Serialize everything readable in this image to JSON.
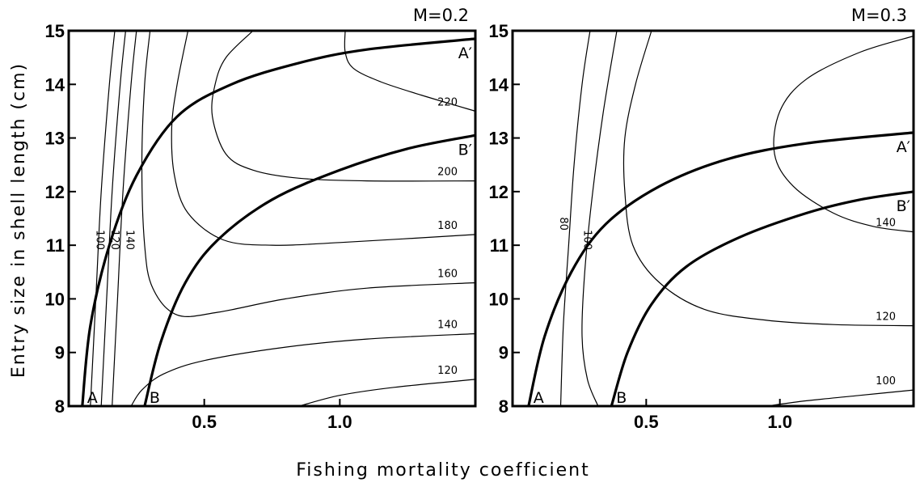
{
  "chart_data": {
    "type": "contour",
    "ylabel": "Entry size in shell length (cm)",
    "xlabel": "Fishing mortality coefficient",
    "xlim": [
      0,
      1.5
    ],
    "ylim": [
      8,
      15
    ],
    "x_ticks": [
      "0.5",
      "1.0"
    ],
    "y_ticks": [
      "8",
      "9",
      "10",
      "11",
      "12",
      "13",
      "14",
      "15"
    ],
    "panels": [
      {
        "title": "M=0.2",
        "contours": [
          {
            "label": "100",
            "points": [
              [
                0.08,
                8
              ],
              [
                0.1,
                10
              ],
              [
                0.12,
                12
              ],
              [
                0.15,
                14
              ],
              [
                0.17,
                15
              ]
            ]
          },
          {
            "label": "120",
            "points": [
              [
                0.12,
                8
              ],
              [
                0.14,
                10
              ],
              [
                0.16,
                12
              ],
              [
                0.19,
                14
              ],
              [
                0.21,
                15
              ]
            ]
          },
          {
            "label": "140",
            "points": [
              [
                0.16,
                8
              ],
              [
                0.18,
                10
              ],
              [
                0.2,
                12
              ],
              [
                0.23,
                14
              ],
              [
                0.25,
                15
              ]
            ]
          },
          {
            "label": "120",
            "points": [
              [
                0.85,
                8
              ],
              [
                1.0,
                8.2
              ],
              [
                1.2,
                8.35
              ],
              [
                1.5,
                8.5
              ]
            ]
          },
          {
            "label": "140",
            "points": [
              [
                0.23,
                8
              ],
              [
                0.27,
                8.3
              ],
              [
                0.35,
                8.6
              ],
              [
                0.5,
                8.85
              ],
              [
                0.8,
                9.1
              ],
              [
                1.1,
                9.25
              ],
              [
                1.5,
                9.35
              ]
            ]
          },
          {
            "label": "160",
            "points": [
              [
                0.3,
                15
              ],
              [
                0.28,
                14
              ],
              [
                0.27,
                12.5
              ],
              [
                0.28,
                11
              ],
              [
                0.31,
                10.2
              ],
              [
                0.4,
                9.7
              ],
              [
                0.55,
                9.75
              ],
              [
                0.8,
                10.0
              ],
              [
                1.1,
                10.2
              ],
              [
                1.5,
                10.3
              ]
            ]
          },
          {
            "label": "180",
            "points": [
              [
                0.44,
                15
              ],
              [
                0.4,
                14
              ],
              [
                0.38,
                13.2
              ],
              [
                0.39,
                12.3
              ],
              [
                0.44,
                11.6
              ],
              [
                0.57,
                11.1
              ],
              [
                0.75,
                11.0
              ],
              [
                1.0,
                11.05
              ],
              [
                1.5,
                11.2
              ]
            ]
          },
          {
            "label": "200",
            "points": [
              [
                0.68,
                15
              ],
              [
                0.58,
                14.5
              ],
              [
                0.54,
                14
              ],
              [
                0.53,
                13.4
              ],
              [
                0.58,
                12.7
              ],
              [
                0.68,
                12.4
              ],
              [
                0.85,
                12.25
              ],
              [
                1.1,
                12.2
              ],
              [
                1.5,
                12.2
              ]
            ]
          },
          {
            "label": "220",
            "points": [
              [
                1.02,
                15
              ],
              [
                1.02,
                14.6
              ],
              [
                1.05,
                14.3
              ],
              [
                1.15,
                14.05
              ],
              [
                1.3,
                13.8
              ],
              [
                1.5,
                13.5
              ]
            ]
          }
        ],
        "curves": [
          {
            "label": "A",
            "label_end": "A′",
            "points": [
              [
                0.05,
                8
              ],
              [
                0.08,
                9.5
              ],
              [
                0.15,
                11.0
              ],
              [
                0.25,
                12.3
              ],
              [
                0.4,
                13.4
              ],
              [
                0.6,
                14.0
              ],
              [
                0.85,
                14.4
              ],
              [
                1.1,
                14.65
              ],
              [
                1.5,
                14.85
              ]
            ]
          },
          {
            "label": "B",
            "label_end": "B′",
            "points": [
              [
                0.28,
                8
              ],
              [
                0.34,
                9.2
              ],
              [
                0.43,
                10.3
              ],
              [
                0.55,
                11.1
              ],
              [
                0.75,
                11.85
              ],
              [
                1.0,
                12.4
              ],
              [
                1.25,
                12.8
              ],
              [
                1.5,
                13.05
              ]
            ]
          }
        ]
      },
      {
        "title": "M=0.3",
        "contours": [
          {
            "label": "80",
            "points": [
              [
                0.18,
                8
              ],
              [
                0.19,
                9.5
              ],
              [
                0.21,
                11
              ],
              [
                0.23,
                12.5
              ],
              [
                0.26,
                14
              ],
              [
                0.29,
                15
              ]
            ]
          },
          {
            "label": "100",
            "points": [
              [
                0.32,
                8
              ],
              [
                0.28,
                8.5
              ],
              [
                0.26,
                9.3
              ],
              [
                0.27,
                10.5
              ],
              [
                0.3,
                12
              ],
              [
                0.34,
                13.5
              ],
              [
                0.39,
                15
              ]
            ]
          },
          {
            "label": "100",
            "points": [
              [
                0.95,
                8
              ],
              [
                1.1,
                8.1
              ],
              [
                1.3,
                8.2
              ],
              [
                1.5,
                8.3
              ]
            ]
          },
          {
            "label": "120",
            "points": [
              [
                0.52,
                15
              ],
              [
                0.46,
                14
              ],
              [
                0.42,
                13
              ],
              [
                0.42,
                12
              ],
              [
                0.45,
                11
              ],
              [
                0.55,
                10.3
              ],
              [
                0.72,
                9.8
              ],
              [
                0.95,
                9.6
              ],
              [
                1.2,
                9.52
              ],
              [
                1.5,
                9.5
              ]
            ]
          },
          {
            "label": "140",
            "points": [
              [
                1.5,
                14.9
              ],
              [
                1.3,
                14.6
              ],
              [
                1.1,
                14.1
              ],
              [
                1.0,
                13.5
              ],
              [
                0.98,
                12.7
              ],
              [
                1.05,
                12.1
              ],
              [
                1.2,
                11.6
              ],
              [
                1.35,
                11.35
              ],
              [
                1.5,
                11.25
              ]
            ]
          }
        ],
        "curves": [
          {
            "label": "A",
            "label_end": "A′",
            "points": [
              [
                0.06,
                8
              ],
              [
                0.12,
                9.3
              ],
              [
                0.22,
                10.5
              ],
              [
                0.35,
                11.4
              ],
              [
                0.55,
                12.1
              ],
              [
                0.8,
                12.6
              ],
              [
                1.1,
                12.9
              ],
              [
                1.5,
                13.1
              ]
            ]
          },
          {
            "label": "B",
            "label_end": "B′",
            "points": [
              [
                0.37,
                8
              ],
              [
                0.43,
                9.0
              ],
              [
                0.52,
                9.9
              ],
              [
                0.65,
                10.6
              ],
              [
                0.85,
                11.15
              ],
              [
                1.1,
                11.6
              ],
              [
                1.3,
                11.85
              ],
              [
                1.5,
                12.0
              ]
            ]
          }
        ]
      }
    ]
  }
}
